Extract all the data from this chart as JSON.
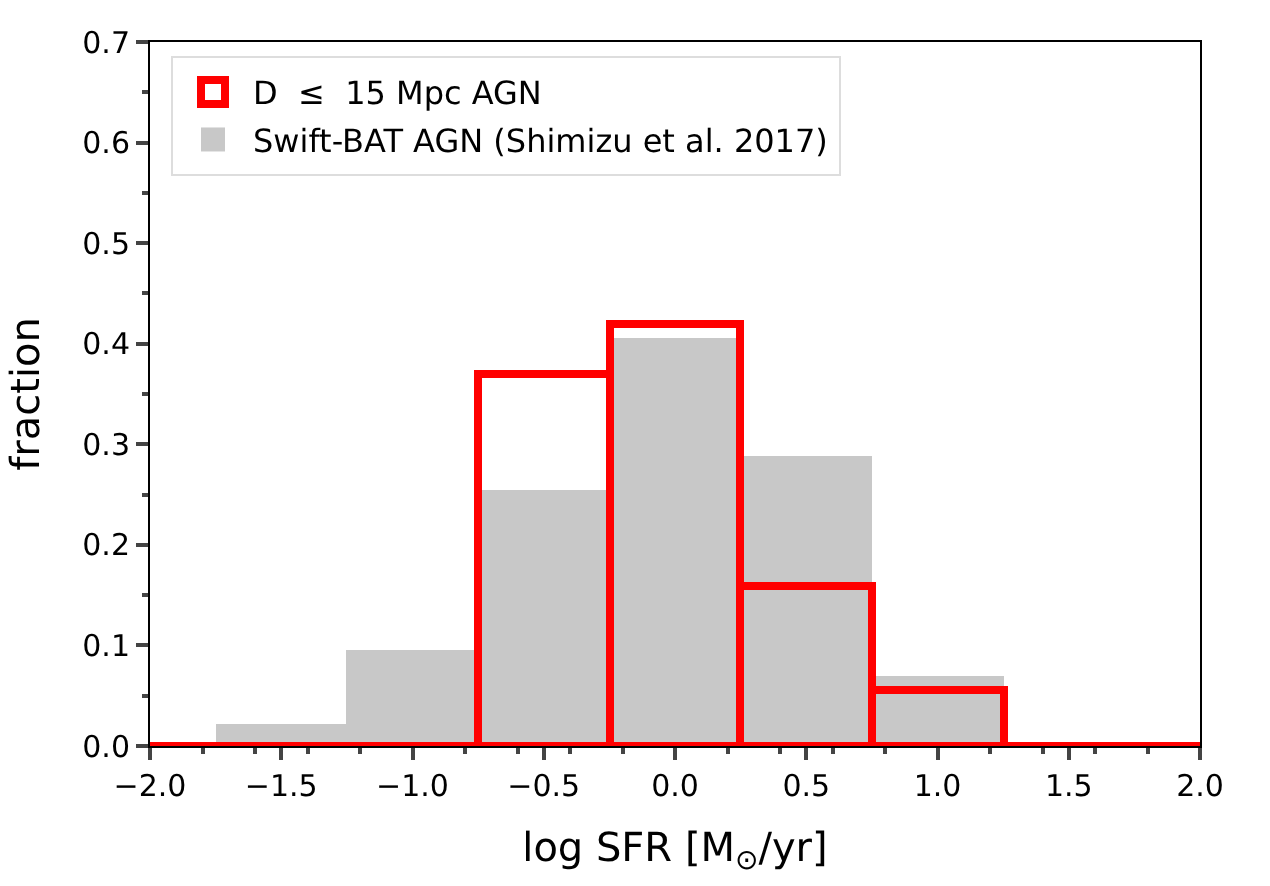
{
  "chart_data": {
    "type": "histogram",
    "xlabel": "log SFR [M$_{⊙}$/yr]",
    "ylabel": "fraction",
    "bins": [
      -2.25,
      -1.75,
      -1.25,
      -0.75,
      -0.25,
      0.25,
      0.75,
      1.25,
      1.75,
      2.25
    ],
    "series": [
      {
        "name": "D  ≤  15 Mpc AGN",
        "color": "#ff0000",
        "line_style": "solid",
        "values": [
          0,
          0,
          0,
          0.37,
          0.42,
          0.16,
          0.055,
          0,
          0
        ]
      },
      {
        "name": "Swift-BAT AGN (Shimizu et al. 2017)",
        "color": "#c8c8c8",
        "values": [
          0,
          0.022,
          0.096,
          0.255,
          0.405,
          0.288,
          0.07,
          0,
          0
        ]
      }
    ],
    "xlim": [
      -2.0,
      2.0
    ],
    "xticks": [
      {
        "value": -2.0,
        "label": "−2.0"
      },
      {
        "value": -1.5,
        "label": "−1.5"
      },
      {
        "value": -1.0,
        "label": "−1.0"
      },
      {
        "value": -0.5,
        "label": "−0.5"
      },
      {
        "value": 0.0,
        "label": "0.0"
      },
      {
        "value": 0.5,
        "label": "0.5"
      },
      {
        "value": 1.0,
        "label": "1.0"
      },
      {
        "value": 1.5,
        "label": "1.5"
      },
      {
        "value": 2.0,
        "label": "2.0"
      }
    ],
    "ylim": [
      0,
      0.7
    ],
    "yticks": [
      {
        "value": 0,
        "label": "0.0"
      },
      {
        "value": 0.1,
        "label": "0.1"
      },
      {
        "value": 0.2,
        "label": "0.2"
      },
      {
        "value": 0.3,
        "label": "0.3"
      },
      {
        "value": 0.4,
        "label": "0.4"
      },
      {
        "value": 0.5,
        "label": "0.5"
      },
      {
        "value": 0.6,
        "label": "0.6"
      },
      {
        "value": 0.7,
        "label": "0.7"
      }
    ],
    "legend": "top left"
  }
}
